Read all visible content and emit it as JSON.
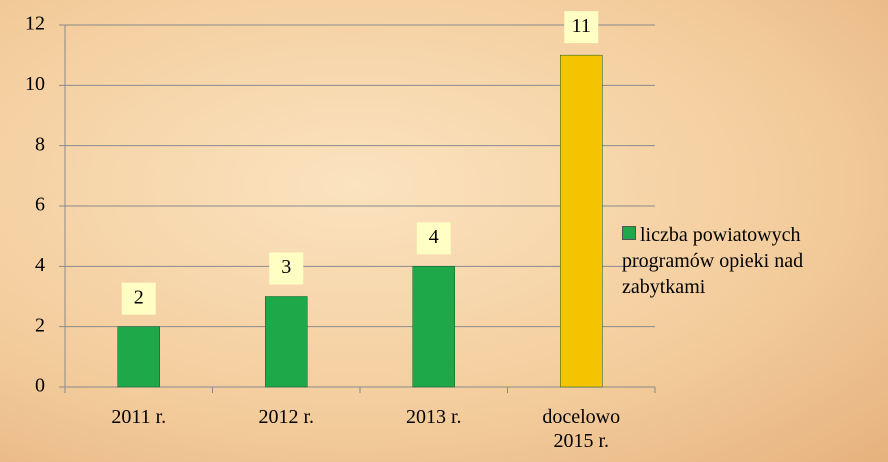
{
  "chart_data": {
    "type": "bar",
    "categories": [
      "2011 r.",
      "2012 r.",
      "2013 r.",
      "docelowo 2015 r."
    ],
    "series": [
      {
        "name": "liczba powiatowych programów opieki nad zabytkami",
        "color": "#1fa84a",
        "colors": [
          "#1fa84a",
          "#1fa84a",
          "#1fa84a",
          "#f5c400"
        ],
        "values": [
          2,
          3,
          4,
          11
        ]
      }
    ],
    "ylim": [
      0,
      12
    ],
    "yticks": [
      0,
      2,
      4,
      6,
      8,
      10,
      12
    ],
    "grid": true,
    "legend": "right"
  }
}
